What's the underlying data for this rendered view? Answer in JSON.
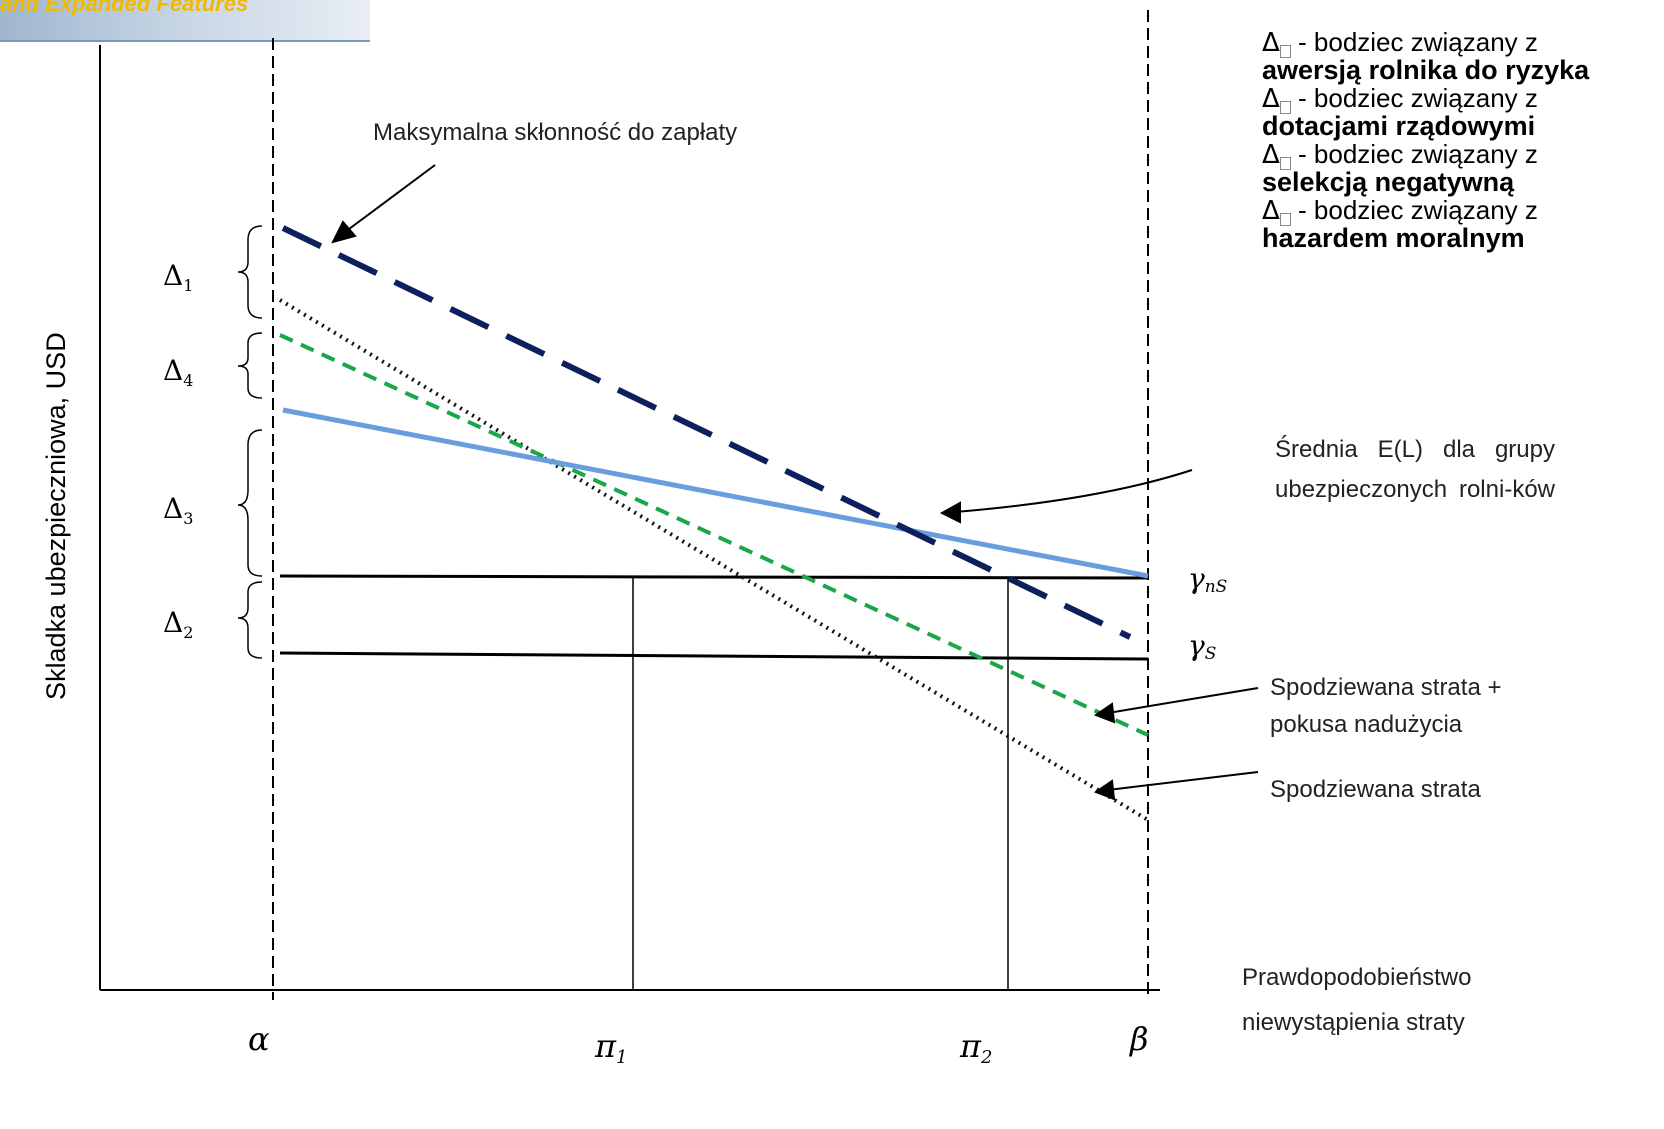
{
  "banner": {
    "text": "and Expanded Features"
  },
  "y_axis_label": "Skladka ubezpieczniowa, USD",
  "x_axis_caption": [
    "Prawdopodobieństwo",
    "niewystąpienia straty"
  ],
  "x_ticks": {
    "alpha": "α",
    "pi1": "π",
    "pi1_sub": "1",
    "pi2": "π",
    "pi2_sub": "2",
    "beta": "β"
  },
  "deltas": [
    {
      "sym": "Δ",
      "sub": "1"
    },
    {
      "sym": "Δ",
      "sub": "4"
    },
    {
      "sym": "Δ",
      "sub": "3"
    },
    {
      "sym": "Δ",
      "sub": "2"
    }
  ],
  "gamma_labels": {
    "gns": "γ",
    "gns_sub": "nS",
    "gs": "γ",
    "gs_sub": "S"
  },
  "annotations": {
    "max_wtp": "Maksymalna skłonność do zapłaty",
    "mean_el": "Średnia E(L) dla grupy ubezpieczonych rolni-ków",
    "expected_loss_moral": [
      "Spodziewana strata +",
      "pokusa nadużycia"
    ],
    "expected_loss": "Spodziewana strata"
  },
  "legend": [
    {
      "sym": "Δ",
      "text": " - bodziec związany z",
      "bold": "awersją rolnika do ryzyka"
    },
    {
      "sym": "Δ",
      "text": " - bodziec związany z",
      "bold": "dotacjami rządowymi"
    },
    {
      "sym": "Δ",
      "text": " - bodziec związany z",
      "bold": "selekcją negatywną"
    },
    {
      "sym": "Δ",
      "text": "  - bodziec związany z",
      "bold": "hazardem moralnym"
    }
  ],
  "colors": {
    "max_wtp_line": "#0d1f5c",
    "mean_el_line": "#6a9ddf",
    "moral_hazard_line": "#1aa64a",
    "expected_loss_line": "#111111"
  }
}
